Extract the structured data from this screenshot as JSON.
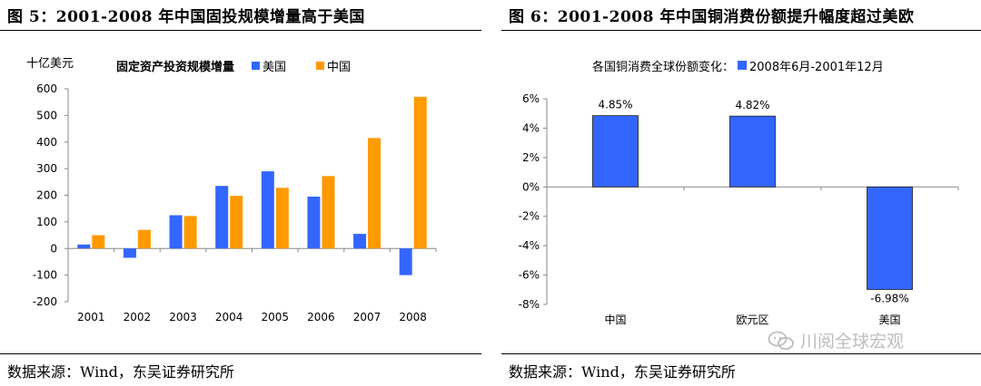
{
  "left": {
    "fig_title": "图 5：2001-2008 年中国固投规模增量高于美国",
    "source": "数据来源：Wind，东吴证券研究所"
  },
  "right": {
    "fig_title": "图 6：2001-2008 年中国铜消费份额提升幅度超过美欧",
    "source": "数据来源：Wind，东吴证券研究所"
  },
  "watermark": "川阅全球宏观",
  "chart_data": [
    {
      "type": "bar",
      "title": "固定资产投资规模增量",
      "unit_label": "十亿美元",
      "categories": [
        "2001",
        "2002",
        "2003",
        "2004",
        "2005",
        "2006",
        "2007",
        "2008"
      ],
      "series": [
        {
          "name": "美国",
          "color": "#3366ff",
          "values": [
            15,
            -35,
            125,
            235,
            290,
            195,
            55,
            -100
          ]
        },
        {
          "name": "中国",
          "color": "#ff9900",
          "values": [
            50,
            70,
            122,
            198,
            228,
            272,
            415,
            570
          ]
        }
      ],
      "y_ticks": [
        "600",
        "500",
        "400",
        "300",
        "200",
        "100",
        "0",
        "-100",
        "-200"
      ],
      "ylim": [
        -200,
        600
      ],
      "legend_position": "top",
      "grid": false
    },
    {
      "type": "bar",
      "title": "各国铜消费全球份额变化：",
      "categories": [
        "中国",
        "欧元区",
        "美国"
      ],
      "series": [
        {
          "name": "2008年6月-2001年12月",
          "color": "#3366ff",
          "values": [
            4.85,
            4.82,
            -6.98
          ]
        }
      ],
      "data_labels": [
        "4.85%",
        "4.82%",
        "-6.98%"
      ],
      "y_ticks": [
        "6%",
        "4%",
        "2%",
        "0%",
        "-2%",
        "-4%",
        "-6%",
        "-8%"
      ],
      "ylim": [
        -8,
        6
      ],
      "legend_position": "top",
      "grid": false
    }
  ]
}
